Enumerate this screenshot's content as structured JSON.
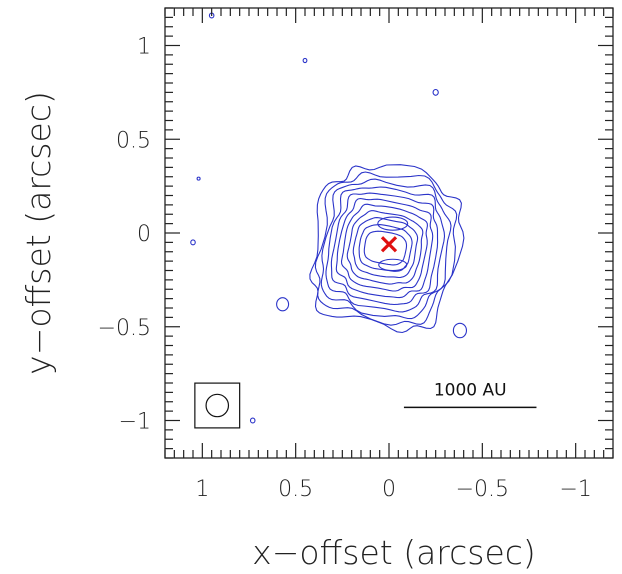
{
  "chart_data": {
    "type": "contour",
    "xlabel": "x−offset (arcsec)",
    "ylabel": "y−offset (arcsec)",
    "xlim": [
      1.2,
      -1.2
    ],
    "ylim": [
      -1.2,
      1.2
    ],
    "x_ticks": [
      {
        "value": 1,
        "label": "1"
      },
      {
        "value": 0.5,
        "label": "0.5"
      },
      {
        "value": 0,
        "label": "0"
      },
      {
        "value": -0.5,
        "label": "−0.5"
      },
      {
        "value": -1,
        "label": "−1"
      }
    ],
    "y_ticks": [
      {
        "value": 1,
        "label": "1"
      },
      {
        "value": 0.5,
        "label": "0.5"
      },
      {
        "value": 0,
        "label": "0"
      },
      {
        "value": -0.5,
        "label": "−0.5"
      },
      {
        "value": -1,
        "label": "−1"
      }
    ],
    "contour_color": "#2b34c9",
    "marker_color": "#e01010",
    "center_marker": {
      "x": 0.0,
      "y": -0.06
    },
    "emission": {
      "center_x": 0.02,
      "center_y": -0.08,
      "half_width_x": 0.38,
      "half_width_y": 0.42
    },
    "contour_levels": 11,
    "noise_blobs": [
      {
        "x": 0.95,
        "y": 1.16,
        "r": 0.012
      },
      {
        "x": 0.45,
        "y": 0.92,
        "r": 0.01
      },
      {
        "x": -0.25,
        "y": 0.75,
        "r": 0.014
      },
      {
        "x": 1.05,
        "y": -0.05,
        "r": 0.012
      },
      {
        "x": 0.57,
        "y": -0.38,
        "r": 0.032
      },
      {
        "x": -0.38,
        "y": -0.52,
        "r": 0.035
      },
      {
        "x": 0.73,
        "y": -1.0,
        "r": 0.012
      },
      {
        "x": 1.02,
        "y": 0.29,
        "r": 0.004
      }
    ],
    "beam": {
      "x": 0.92,
      "y": -0.92,
      "box_half_size": 0.12,
      "radius": 0.06
    },
    "scale_bar": {
      "label": "1000 AU",
      "x_start": -0.08,
      "x_end": -0.79,
      "y": -0.93
    }
  }
}
